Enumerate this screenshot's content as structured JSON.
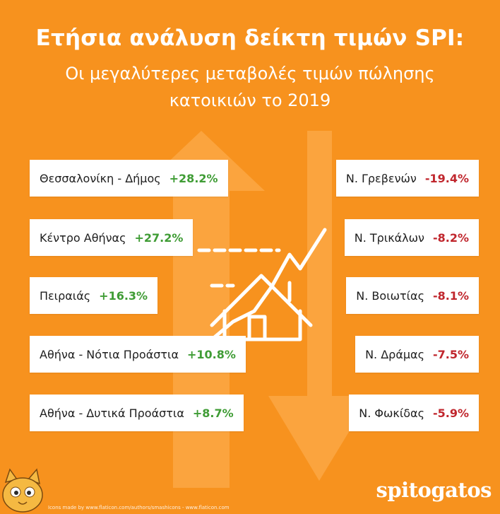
{
  "title": {
    "main": "Ετήσια ανάλυση δείκτη τιμών SPI:",
    "sub1": "Οι μεγαλύτερες μεταβολές τιμών πώλησης",
    "sub2": "κατοικιών το 2019"
  },
  "increases": [
    {
      "label": "Θεσσαλονίκη - Δήμος",
      "value": "+28.2%"
    },
    {
      "label": "Κέντρο Αθήνας",
      "value": "+27.2%"
    },
    {
      "label": "Πειραιάς",
      "value": "+16.3%"
    },
    {
      "label": "Αθήνα - Νότια Προάστια",
      "value": "+10.8%"
    },
    {
      "label": "Αθήνα - Δυτικά Προάστια",
      "value": "+8.7%"
    }
  ],
  "decreases": [
    {
      "label": "Ν. Γρεβενών",
      "value": "-19.4%"
    },
    {
      "label": "Ν. Τρικάλων",
      "value": "-8.2%"
    },
    {
      "label": "Ν. Βοιωτίας",
      "value": "-8.1%"
    },
    {
      "label": "Ν. Δράμας",
      "value": "-7.5%"
    },
    {
      "label": "Ν. Φωκίδας",
      "value": "-5.9%"
    }
  ],
  "footer": {
    "credit": "Icons made by www.flaticon.com/authors/smashicons - www.flaticon.com",
    "brand": "spitogatos"
  },
  "colors": {
    "background": "#f7921e",
    "increase": "#3f9c35",
    "decrease": "#c0262d",
    "card": "#ffffff"
  },
  "icons": [
    "house-chart-icon",
    "cat-mascot-icon"
  ]
}
